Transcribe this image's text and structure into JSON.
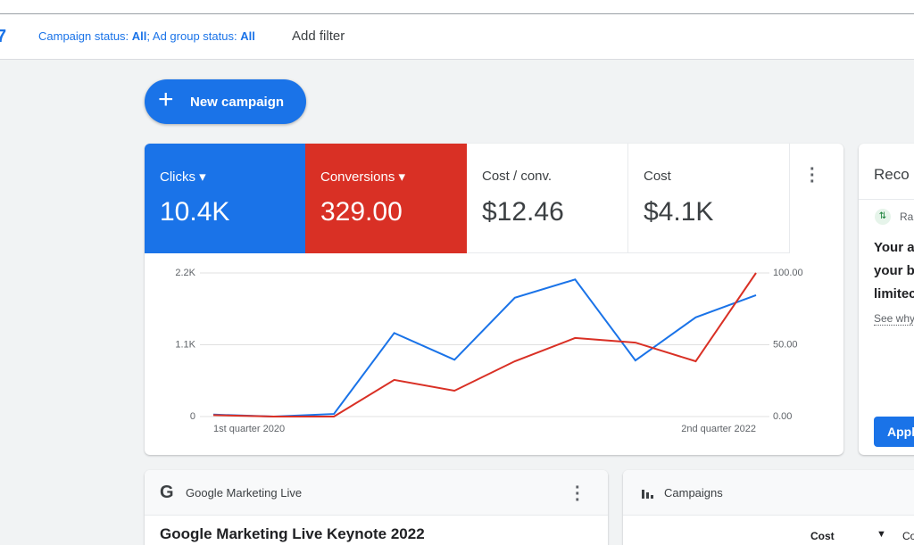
{
  "filter_bar": {
    "campaign_status_label": "Campaign status: ",
    "campaign_status_value": "All",
    "separator": "; Ad group status: ",
    "ad_group_status_value": "All",
    "add_filter": "Add filter"
  },
  "new_campaign_button": "New campaign",
  "scorecards": [
    {
      "value": "10.4K"
    },
    {
      "value": "329.00"
    },
    {
      "label": "Cost / conv.",
      "value": "$12.46"
    },
    {
      "label": "Cost",
      "value": "$4.1K"
    }
  ],
  "chart_data": {
    "type": "line",
    "categories": [
      "1st quarter 2020",
      null,
      null,
      null,
      null,
      null,
      null,
      null,
      null,
      "2nd quarter 2022"
    ],
    "series": [
      {
        "name": "Clicks",
        "color": "#1a73e8",
        "values": [
          30,
          0,
          40,
          1280,
          870,
          1820,
          2100,
          860,
          1520,
          1860
        ]
      },
      {
        "name": "Conversions",
        "color": "#d93025",
        "axis": "y2",
        "values": [
          1,
          0,
          0,
          25.5,
          18,
          38.5,
          54.7,
          51.5,
          38.5,
          100
        ]
      }
    ],
    "ylim": [
      0,
      2200
    ],
    "yticks": [
      0,
      {
        "value": 1100,
        "label": "1.1K"
      },
      {
        "value": 2200,
        "label": "2.2K"
      }
    ],
    "y2lim": [
      0,
      100
    ],
    "y2ticks": [
      {
        "value": 0,
        "label": "0.00"
      },
      {
        "value": 50,
        "label": "50.00"
      },
      {
        "value": 100,
        "label": "100.00"
      }
    ],
    "grid": true
  },
  "recommendations_card": {
    "title": "Reco",
    "tag": "Ra",
    "lines": [
      "Your a",
      "your b",
      "limitec"
    ],
    "link": "See why",
    "button": "Appl"
  },
  "gml_card": {
    "header": "Google Marketing Live",
    "title": "Google Marketing Live Keynote 2022"
  },
  "campaigns_card": {
    "header": "Campaigns",
    "column": "Cost",
    "column_next": "Co"
  }
}
